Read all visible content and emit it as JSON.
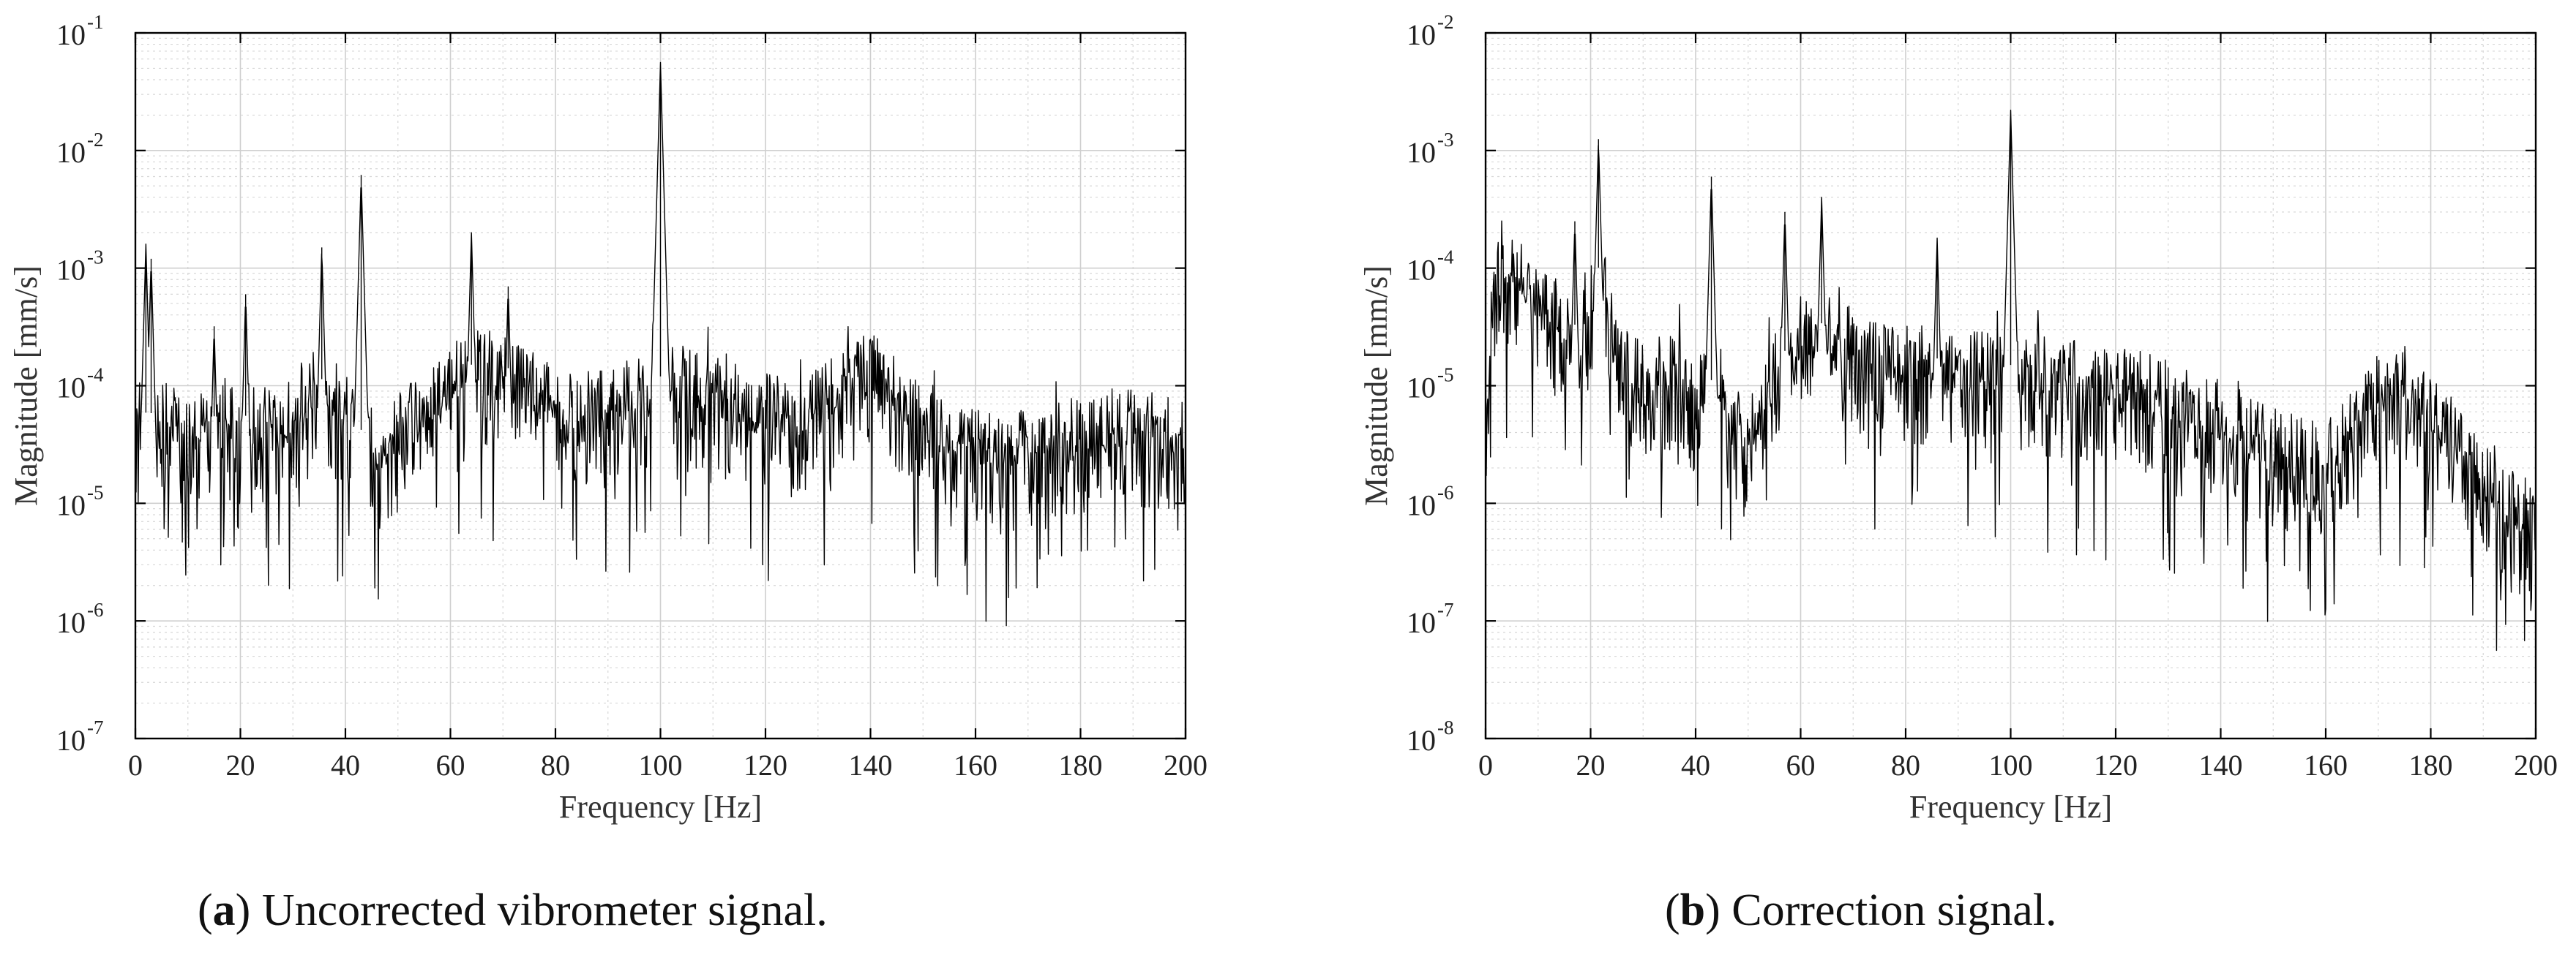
{
  "chart_data": [
    {
      "type": "line",
      "panel": "a",
      "xlabel": "Frequency [Hz]",
      "ylabel": "Magnitude [mm/s]",
      "xlim": [
        0,
        200
      ],
      "ylim": [
        1e-07,
        0.1
      ],
      "yscale": "log",
      "grid": true,
      "xticks": [
        "0",
        "20",
        "40",
        "60",
        "80",
        "100",
        "120",
        "140",
        "160",
        "180",
        "200"
      ],
      "yticks": [
        {
          "base": "10",
          "exp": "-7"
        },
        {
          "base": "10",
          "exp": "-6"
        },
        {
          "base": "10",
          "exp": "-5"
        },
        {
          "base": "10",
          "exp": "-4"
        },
        {
          "base": "10",
          "exp": "-3"
        },
        {
          "base": "10",
          "exp": "-2"
        },
        {
          "base": "10",
          "exp": "-1"
        }
      ],
      "baseline": {
        "x": [
          0,
          10,
          20,
          30,
          35,
          40,
          45,
          50,
          55,
          60,
          65,
          70,
          75,
          80,
          90,
          98,
          105,
          115,
          125,
          135,
          140,
          145,
          155,
          165,
          175,
          185,
          200
        ],
        "y": [
          6e-05,
          5.5e-05,
          5.5e-05,
          6e-05,
          0.00012,
          7e-05,
          3e-05,
          4.5e-05,
          7e-05,
          0.00012,
          0.00016,
          0.00015,
          0.00011,
          8e-05,
          7e-05,
          0.00012,
          0.00012,
          8e-05,
          6e-05,
          0.00011,
          0.00015,
          0.0001,
          4.5e-05,
          3e-05,
          4e-05,
          5e-05,
          5e-05
        ]
      },
      "peaks": [
        {
          "x": 2,
          "y": 0.0016
        },
        {
          "x": 3,
          "y": 0.0012
        },
        {
          "x": 15,
          "y": 0.00032
        },
        {
          "x": 21,
          "y": 0.0006
        },
        {
          "x": 35.5,
          "y": 0.0015
        },
        {
          "x": 43,
          "y": 0.0062
        },
        {
          "x": 64,
          "y": 0.002
        },
        {
          "x": 71,
          "y": 0.0007
        },
        {
          "x": 100,
          "y": 0.056
        }
      ]
    },
    {
      "type": "line",
      "panel": "b",
      "xlabel": "Frequency [Hz]",
      "ylabel": "Magnitude [mm/s]",
      "xlim": [
        0,
        200
      ],
      "ylim": [
        1e-08,
        0.01
      ],
      "yscale": "log",
      "grid": true,
      "xticks": [
        "0",
        "20",
        "40",
        "60",
        "80",
        "100",
        "120",
        "140",
        "160",
        "180",
        "200"
      ],
      "yticks": [
        {
          "base": "10",
          "exp": "-8"
        },
        {
          "base": "10",
          "exp": "-7"
        },
        {
          "base": "10",
          "exp": "-6"
        },
        {
          "base": "10",
          "exp": "-5"
        },
        {
          "base": "10",
          "exp": "-4"
        },
        {
          "base": "10",
          "exp": "-3"
        },
        {
          "base": "10",
          "exp": "-2"
        }
      ],
      "baseline": {
        "x": [
          0,
          1,
          3,
          6,
          10,
          15,
          18,
          22,
          25,
          30,
          35,
          40,
          45,
          50,
          55,
          60,
          65,
          70,
          80,
          100,
          120,
          130,
          140,
          150,
          160,
          165,
          170,
          175,
          180,
          190,
          200
        ],
        "y": [
          5e-06,
          4e-05,
          0.00015,
          0.0001,
          6e-05,
          4e-05,
          3e-05,
          0.00012,
          2e-05,
          1.2e-05,
          1.5e-05,
          1e-05,
          1.2e-05,
          3e-06,
          1.5e-05,
          3e-05,
          3.5e-05,
          2.5e-05,
          1.8e-05,
          1.5e-05,
          1.2e-05,
          9e-06,
          6e-06,
          3.5e-06,
          2.5e-06,
          5e-06,
          1e-05,
          1.2e-05,
          7e-06,
          2e-06,
          8e-07
        ]
      },
      "peaks": [
        {
          "x": 21.5,
          "y": 0.00125
        },
        {
          "x": 17,
          "y": 0.00025
        },
        {
          "x": 43,
          "y": 0.0006
        },
        {
          "x": 57,
          "y": 0.0003
        },
        {
          "x": 64,
          "y": 0.0004
        },
        {
          "x": 86,
          "y": 0.00018
        },
        {
          "x": 100,
          "y": 0.0022
        }
      ]
    }
  ],
  "captions": [
    {
      "letter": "a",
      "text": " Uncorrected vibrometer signal."
    },
    {
      "letter": "b",
      "text": " Correction signal."
    }
  ]
}
